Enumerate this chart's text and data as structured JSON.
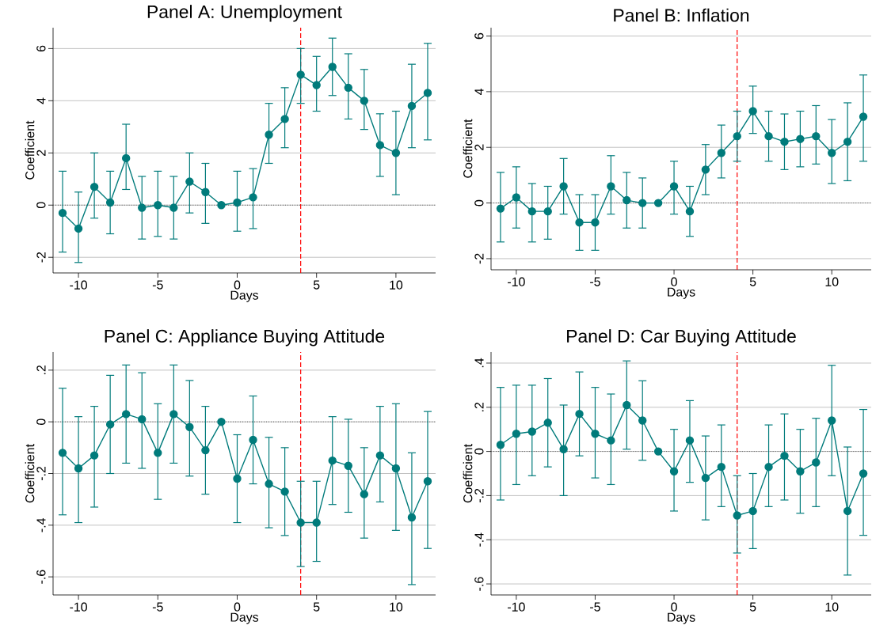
{
  "chart_data": [
    {
      "type": "line",
      "title": "Panel A: Unemployment",
      "xlabel": "Days",
      "ylabel": "Coefficient",
      "color": "#007b7b",
      "marker": "circle",
      "line_style": "solid",
      "grid": "y",
      "x": [
        -11,
        -10,
        -9,
        -8,
        -7,
        -6,
        -5,
        -4,
        -3,
        -2,
        -1,
        0,
        1,
        2,
        3,
        4,
        5,
        6,
        7,
        8,
        9,
        10,
        11,
        12
      ],
      "values": [
        -0.3,
        -0.9,
        0.7,
        0.1,
        1.8,
        -0.1,
        0.0,
        -0.1,
        0.9,
        0.5,
        0.0,
        0.1,
        0.3,
        2.7,
        3.3,
        5.0,
        4.6,
        5.3,
        4.5,
        4.0,
        2.3,
        2.0,
        3.8,
        4.3
      ],
      "errors": [
        [
          -1.8,
          1.3
        ],
        [
          -2.2,
          0.5
        ],
        [
          -0.5,
          2.0
        ],
        [
          -1.1,
          1.3
        ],
        [
          0.6,
          3.1
        ],
        [
          -1.3,
          1.1
        ],
        [
          -1.2,
          1.3
        ],
        [
          -1.3,
          1.1
        ],
        [
          -0.3,
          2.0
        ],
        [
          -0.7,
          1.6
        ],
        null,
        [
          -1.0,
          1.3
        ],
        [
          -0.9,
          1.4
        ],
        [
          1.6,
          3.9
        ],
        [
          2.2,
          4.5
        ],
        [
          3.9,
          6.0
        ],
        [
          3.6,
          5.7
        ],
        [
          4.2,
          6.4
        ],
        [
          3.3,
          5.8
        ],
        [
          2.9,
          5.2
        ],
        [
          1.1,
          3.5
        ],
        [
          0.4,
          3.6
        ],
        [
          2.2,
          5.4
        ],
        [
          2.5,
          6.2
        ]
      ],
      "xlim": [
        -11.6,
        12.5
      ],
      "ylim": [
        -2.6,
        6.8
      ],
      "xticks": [
        -10,
        -5,
        0,
        5,
        10
      ],
      "yticks": [
        -2,
        0,
        2,
        4,
        6
      ],
      "ref_lines": [
        {
          "axis": "y",
          "value": 0,
          "color": "#555555",
          "line_style": "dotted"
        },
        {
          "axis": "x",
          "value": 4,
          "color": "#ff0000",
          "line_style": "dashed"
        }
      ]
    },
    {
      "type": "line",
      "title": "Panel B: Inflation",
      "xlabel": "Days",
      "ylabel": "Coefficient",
      "color": "#007b7b",
      "marker": "circle",
      "line_style": "solid",
      "grid": "y",
      "x": [
        -11,
        -10,
        -9,
        -8,
        -7,
        -6,
        -5,
        -4,
        -3,
        -2,
        -1,
        0,
        1,
        2,
        3,
        4,
        5,
        6,
        7,
        8,
        9,
        10,
        11,
        12
      ],
      "values": [
        -0.2,
        0.2,
        -0.3,
        -0.3,
        0.6,
        -0.7,
        -0.7,
        0.6,
        0.1,
        0.0,
        0.0,
        0.6,
        -0.3,
        1.2,
        1.8,
        2.4,
        3.3,
        2.4,
        2.2,
        2.3,
        2.4,
        1.8,
        2.2,
        3.1
      ],
      "errors": [
        [
          -1.4,
          1.1
        ],
        [
          -0.9,
          1.3
        ],
        [
          -1.4,
          0.7
        ],
        [
          -1.3,
          0.6
        ],
        [
          -0.4,
          1.6
        ],
        [
          -1.7,
          0.3
        ],
        [
          -1.7,
          0.3
        ],
        [
          -0.4,
          1.7
        ],
        [
          -0.9,
          1.1
        ],
        [
          -0.9,
          0.9
        ],
        null,
        [
          -0.4,
          1.5
        ],
        [
          -1.2,
          0.6
        ],
        [
          0.3,
          2.1
        ],
        [
          0.9,
          2.8
        ],
        [
          1.5,
          3.3
        ],
        [
          2.5,
          4.2
        ],
        [
          1.5,
          3.3
        ],
        [
          1.2,
          3.2
        ],
        [
          1.3,
          3.3
        ],
        [
          1.4,
          3.5
        ],
        [
          0.7,
          3.0
        ],
        [
          0.8,
          3.6
        ],
        [
          1.5,
          4.6
        ]
      ],
      "xlim": [
        -11.6,
        12.5
      ],
      "ylim": [
        -2.4,
        6.3
      ],
      "xticks": [
        -10,
        -5,
        0,
        5,
        10
      ],
      "yticks": [
        -2,
        0,
        2,
        4,
        6
      ],
      "ref_lines": [
        {
          "axis": "y",
          "value": 0,
          "color": "#555555",
          "line_style": "dotted"
        },
        {
          "axis": "x",
          "value": 4,
          "color": "#ff0000",
          "line_style": "dashed"
        }
      ]
    },
    {
      "type": "line",
      "title": "Panel C: Appliance Buying Attitude",
      "xlabel": "Days",
      "ylabel": "Coefficient",
      "color": "#007b7b",
      "marker": "circle",
      "line_style": "solid",
      "grid": "y",
      "x": [
        -11,
        -10,
        -9,
        -8,
        -7,
        -6,
        -5,
        -4,
        -3,
        -2,
        -1,
        0,
        1,
        2,
        3,
        4,
        5,
        6,
        7,
        8,
        9,
        10,
        11,
        12
      ],
      "values": [
        -0.12,
        -0.18,
        -0.13,
        -0.01,
        0.03,
        0.01,
        -0.12,
        0.03,
        -0.02,
        -0.11,
        0.0,
        -0.22,
        -0.07,
        -0.24,
        -0.27,
        -0.39,
        -0.39,
        -0.15,
        -0.17,
        -0.28,
        -0.13,
        -0.18,
        -0.37,
        -0.23
      ],
      "errors": [
        [
          -0.36,
          0.13
        ],
        [
          -0.39,
          0.02
        ],
        [
          -0.33,
          0.06
        ],
        [
          -0.2,
          0.18
        ],
        [
          -0.16,
          0.22
        ],
        [
          -0.18,
          0.19
        ],
        [
          -0.3,
          0.07
        ],
        [
          -0.16,
          0.22
        ],
        [
          -0.21,
          0.16
        ],
        [
          -0.28,
          0.06
        ],
        null,
        [
          -0.39,
          -0.05
        ],
        [
          -0.24,
          0.1
        ],
        [
          -0.41,
          -0.06
        ],
        [
          -0.44,
          -0.1
        ],
        [
          -0.56,
          -0.23
        ],
        [
          -0.54,
          -0.23
        ],
        [
          -0.32,
          0.02
        ],
        [
          -0.35,
          0.01
        ],
        [
          -0.45,
          -0.1
        ],
        [
          -0.31,
          0.06
        ],
        [
          -0.42,
          0.07
        ],
        [
          -0.63,
          -0.12
        ],
        [
          -0.49,
          0.04
        ]
      ],
      "xlim": [
        -11.6,
        12.5
      ],
      "ylim": [
        -0.67,
        0.27
      ],
      "xticks": [
        -10,
        -5,
        0,
        5,
        10
      ],
      "yticks": [
        {
          "value": -0.6,
          "label": "-.6"
        },
        {
          "value": -0.4,
          "label": "-.4"
        },
        {
          "value": -0.2,
          "label": "-.2"
        },
        0,
        {
          "value": 0.2,
          "label": ".2"
        }
      ],
      "ref_lines": [
        {
          "axis": "y",
          "value": 0,
          "color": "#555555",
          "line_style": "dotted"
        },
        {
          "axis": "x",
          "value": 4,
          "color": "#ff0000",
          "line_style": "dashed"
        }
      ]
    },
    {
      "type": "line",
      "title": "Panel D: Car Buying Attitude",
      "xlabel": "Days",
      "ylabel": "Coefficient",
      "color": "#007b7b",
      "marker": "circle",
      "line_style": "solid",
      "grid": "y",
      "x": [
        -11,
        -10,
        -9,
        -8,
        -7,
        -6,
        -5,
        -4,
        -3,
        -2,
        -1,
        0,
        1,
        2,
        3,
        4,
        5,
        6,
        7,
        8,
        9,
        10,
        11,
        12
      ],
      "values": [
        0.03,
        0.08,
        0.09,
        0.13,
        0.01,
        0.17,
        0.08,
        0.05,
        0.21,
        0.14,
        0.0,
        -0.09,
        0.05,
        -0.12,
        -0.07,
        -0.29,
        -0.27,
        -0.07,
        -0.02,
        -0.09,
        -0.05,
        0.14,
        -0.27,
        -0.1
      ],
      "errors": [
        [
          -0.22,
          0.29
        ],
        [
          -0.15,
          0.3
        ],
        [
          -0.11,
          0.3
        ],
        [
          -0.07,
          0.33
        ],
        [
          -0.2,
          0.21
        ],
        [
          -0.02,
          0.36
        ],
        [
          -0.12,
          0.29
        ],
        [
          -0.15,
          0.26
        ],
        [
          0.01,
          0.41
        ],
        [
          -0.04,
          0.32
        ],
        null,
        [
          -0.27,
          0.1
        ],
        [
          -0.14,
          0.23
        ],
        [
          -0.31,
          0.07
        ],
        [
          -0.25,
          0.12
        ],
        [
          -0.46,
          -0.11
        ],
        [
          -0.44,
          -0.1
        ],
        [
          -0.25,
          0.12
        ],
        [
          -0.22,
          0.17
        ],
        [
          -0.28,
          0.1
        ],
        [
          -0.25,
          0.15
        ],
        [
          -0.11,
          0.39
        ],
        [
          -0.56,
          0.02
        ],
        [
          -0.38,
          0.19
        ]
      ],
      "xlim": [
        -11.6,
        12.5
      ],
      "ylim": [
        -0.65,
        0.45
      ],
      "xticks": [
        -10,
        -5,
        0,
        5,
        10
      ],
      "yticks": [
        {
          "value": -0.6,
          "label": "-.6"
        },
        {
          "value": -0.4,
          "label": "-.4"
        },
        {
          "value": -0.2,
          "label": "-.2"
        },
        0,
        {
          "value": 0.2,
          "label": ".2"
        },
        {
          "value": 0.4,
          "label": ".4"
        }
      ],
      "ref_lines": [
        {
          "axis": "y",
          "value": 0,
          "color": "#555555",
          "line_style": "dotted"
        },
        {
          "axis": "x",
          "value": 4,
          "color": "#ff0000",
          "line_style": "dashed"
        }
      ]
    }
  ]
}
